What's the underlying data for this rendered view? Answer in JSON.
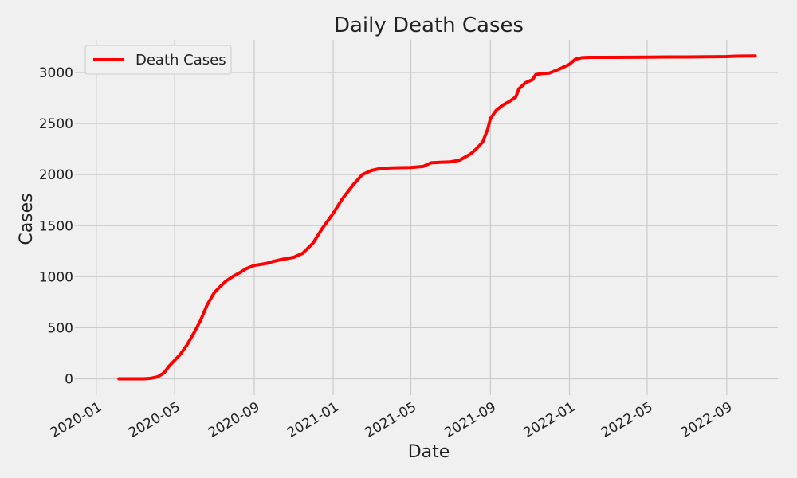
{
  "chart_data": {
    "type": "line",
    "title": "Daily Death Cases",
    "xlabel": "Date",
    "ylabel": "Cases",
    "x_ticks": [
      "2020-01",
      "2020-05",
      "2020-09",
      "2021-01",
      "2021-05",
      "2021-09",
      "2022-01",
      "2022-05",
      "2022-09"
    ],
    "y_ticks": [
      0,
      500,
      1000,
      1500,
      2000,
      2500,
      3000
    ],
    "xlim": [
      "2019-11-29",
      "2022-11-19"
    ],
    "ylim": [
      -160,
      3320
    ],
    "grid": true,
    "legend_position": "top-left",
    "series": [
      {
        "name": "Death Cases",
        "color": "#ff0000",
        "x": [
          "2020-02-05",
          "2020-03-01",
          "2020-03-15",
          "2020-03-25",
          "2020-04-05",
          "2020-04-15",
          "2020-04-22",
          "2020-05-01",
          "2020-05-10",
          "2020-05-20",
          "2020-06-01",
          "2020-06-10",
          "2020-06-20",
          "2020-07-01",
          "2020-07-10",
          "2020-07-20",
          "2020-08-01",
          "2020-08-10",
          "2020-08-20",
          "2020-09-01",
          "2020-09-10",
          "2020-09-20",
          "2020-10-01",
          "2020-10-15",
          "2020-11-01",
          "2020-11-15",
          "2020-12-01",
          "2020-12-15",
          "2021-01-01",
          "2021-01-15",
          "2021-02-01",
          "2021-02-15",
          "2021-03-01",
          "2021-03-15",
          "2021-04-01",
          "2021-04-15",
          "2021-05-01",
          "2021-05-20",
          "2021-06-01",
          "2021-06-15",
          "2021-07-01",
          "2021-07-15",
          "2021-08-01",
          "2021-08-10",
          "2021-08-20",
          "2021-08-28",
          "2021-09-01",
          "2021-09-10",
          "2021-09-20",
          "2021-10-01",
          "2021-10-10",
          "2021-10-15",
          "2021-10-25",
          "2021-11-05",
          "2021-11-10",
          "2021-11-20",
          "2021-12-01",
          "2021-12-15",
          "2022-01-01",
          "2022-01-10",
          "2022-01-20",
          "2022-02-01",
          "2022-03-01",
          "2022-04-01",
          "2022-05-01",
          "2022-06-01",
          "2022-07-01",
          "2022-08-01",
          "2022-09-01",
          "2022-09-15",
          "2022-10-15"
        ],
        "y": [
          0,
          0,
          0,
          5,
          20,
          60,
          120,
          180,
          240,
          330,
          460,
          570,
          720,
          840,
          900,
          960,
          1010,
          1040,
          1080,
          1110,
          1120,
          1130,
          1150,
          1170,
          1190,
          1230,
          1330,
          1470,
          1620,
          1760,
          1900,
          2000,
          2040,
          2060,
          2065,
          2068,
          2070,
          2080,
          2115,
          2120,
          2125,
          2140,
          2200,
          2250,
          2320,
          2450,
          2550,
          2630,
          2680,
          2720,
          2760,
          2840,
          2900,
          2930,
          2980,
          2990,
          2995,
          3030,
          3080,
          3130,
          3145,
          3148,
          3148,
          3149,
          3150,
          3152,
          3152,
          3154,
          3156,
          3160,
          3162
        ]
      }
    ]
  }
}
